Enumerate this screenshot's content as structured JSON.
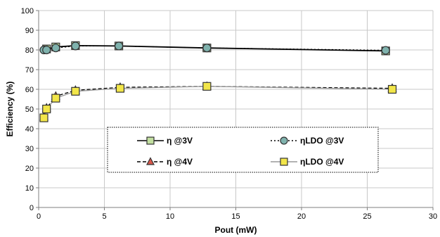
{
  "chart_data": {
    "type": "line",
    "title": "",
    "xlabel": "Pout (mW)",
    "ylabel": "Efficiency (%)",
    "xlim": [
      0,
      30
    ],
    "ylim": [
      0,
      100
    ],
    "xticks": [
      0,
      5,
      10,
      15,
      20,
      25,
      30
    ],
    "yticks": [
      0,
      10,
      20,
      30,
      40,
      50,
      60,
      70,
      80,
      90,
      100
    ],
    "grid": true,
    "legend_position": "center-lower",
    "series": [
      {
        "name": "η @3V",
        "line": "solid",
        "marker": "square",
        "color": "#000000",
        "marker_fill": "#c2dfa0",
        "x": [
          0.6,
          1.3,
          2.8,
          6.1,
          12.8,
          26.4
        ],
        "y": [
          80.5,
          81.5,
          82.2,
          82.0,
          81.0,
          79.5
        ]
      },
      {
        "name": "ηLDO @3V",
        "line": "dotted",
        "marker": "circle",
        "color": "#000000",
        "marker_fill": "#7fb2ad",
        "x": [
          0.4,
          0.6,
          1.3,
          2.8,
          6.1,
          12.8,
          26.4
        ],
        "y": [
          80.0,
          80.0,
          81.0,
          82.0,
          82.0,
          81.0,
          79.8
        ]
      },
      {
        "name": "η @4V",
        "line": "dashed",
        "marker": "triangle",
        "color": "#000000",
        "marker_fill": "#d9574a",
        "x": [
          0.4,
          0.6,
          1.3,
          2.8,
          6.2,
          12.8,
          26.9
        ],
        "y": [
          46.0,
          50.5,
          56.5,
          59.5,
          61.0,
          61.5,
          60.5
        ]
      },
      {
        "name": "ηLDO @4V",
        "line": "solid",
        "marker": "square",
        "color": "#999999",
        "marker_fill": "#f2e64a",
        "x": [
          0.4,
          0.6,
          1.3,
          2.8,
          6.2,
          12.8,
          26.9
        ],
        "y": [
          45.5,
          50.0,
          55.5,
          59.0,
          60.5,
          61.5,
          60.0
        ]
      }
    ]
  }
}
